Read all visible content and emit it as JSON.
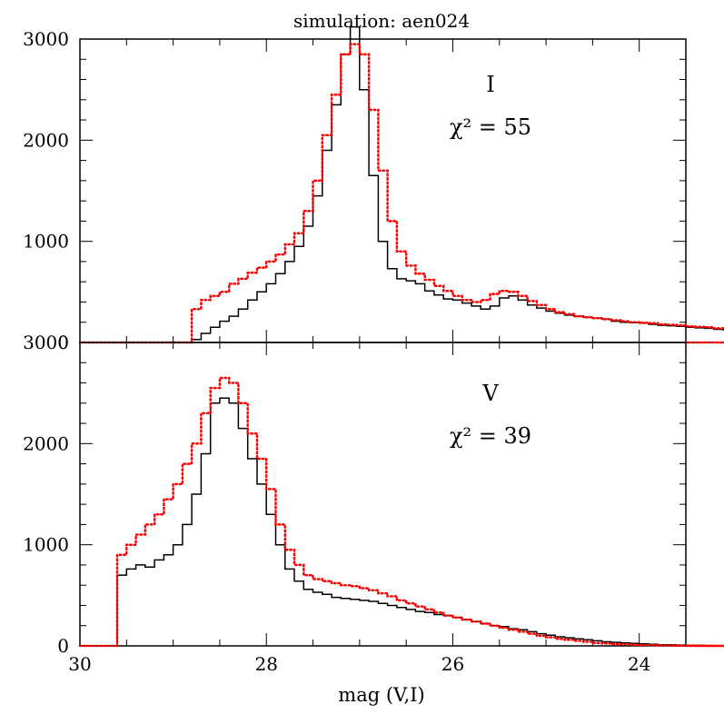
{
  "chart_data": {
    "type": "histogram",
    "title": "simulation: aen024",
    "xlabel": "mag (V,I)",
    "x_range": [
      30,
      23.5
    ],
    "x_ticks": [
      30,
      28,
      26,
      24
    ],
    "y_ticks": [
      0,
      1000,
      2000,
      3000
    ],
    "bin_width": 0.1,
    "panels": [
      {
        "id": "top",
        "band": "I",
        "chi2_label": "χ² = 55",
        "ylim": [
          0,
          3000
        ],
        "series": [
          {
            "style": "solid",
            "color": "#000000",
            "x_start": 28.8,
            "values": [
              30,
              90,
              150,
              210,
              260,
              330,
              420,
              500,
              580,
              680,
              800,
              950,
              1150,
              1450,
              1900,
              2350,
              2850,
              3120,
              2500,
              1650,
              1000,
              730,
              630,
              610,
              580,
              510,
              470,
              430,
              420,
              390,
              360,
              330,
              360,
              440,
              460,
              420,
              370,
              340,
              310,
              290,
              270,
              260,
              250,
              240,
              230,
              210,
              200,
              195,
              190,
              180,
              170,
              165,
              160,
              150,
              145,
              140,
              130,
              125,
              120,
              115,
              110,
              105,
              100,
              95,
              90,
              82,
              72,
              62,
              52,
              42,
              32,
              22,
              16,
              10,
              6,
              3,
              2,
              1,
              0,
              0
            ]
          },
          {
            "style": "dotted",
            "color": "#ff0000",
            "x_start": 28.8,
            "values": [
              330,
              420,
              460,
              500,
              580,
              630,
              690,
              740,
              800,
              870,
              970,
              1080,
              1300,
              1600,
              2050,
              2450,
              2850,
              2950,
              2850,
              2300,
              1700,
              1200,
              900,
              760,
              680,
              620,
              560,
              510,
              460,
              420,
              400,
              420,
              480,
              510,
              500,
              460,
              410,
              370,
              330,
              300,
              280,
              260,
              250,
              240,
              230,
              220,
              210,
              200,
              195,
              190,
              180,
              175,
              170,
              160,
              155,
              150,
              140,
              135,
              130,
              125,
              120,
              115,
              110,
              100,
              95,
              88,
              78,
              68,
              58,
              48,
              38,
              28,
              20,
              14,
              8,
              5,
              3,
              2,
              1,
              0
            ]
          }
        ]
      },
      {
        "id": "bottom",
        "band": "V",
        "chi2_label": "χ² = 39",
        "ylim": [
          0,
          3000
        ],
        "series": [
          {
            "style": "solid",
            "color": "#000000",
            "x_start": 29.6,
            "values": [
              700,
              760,
              800,
              780,
              850,
              900,
              1000,
              1200,
              1500,
              1900,
              2400,
              2450,
              2400,
              2150,
              1850,
              1600,
              1300,
              1000,
              760,
              640,
              560,
              530,
              510,
              480,
              470,
              460,
              450,
              440,
              420,
              400,
              380,
              360,
              340,
              330,
              310,
              300,
              280,
              260,
              240,
              220,
              200,
              190,
              170,
              160,
              140,
              120,
              105,
              90,
              80,
              70,
              60,
              50,
              40,
              35,
              30,
              25,
              20,
              15,
              12,
              10,
              8,
              6,
              5,
              4,
              3,
              2,
              1,
              0,
              0,
              0,
              0,
              0
            ]
          },
          {
            "style": "dotted",
            "color": "#ff0000",
            "x_start": 29.6,
            "values": [
              900,
              1000,
              1100,
              1200,
              1300,
              1450,
              1600,
              1800,
              2000,
              2300,
              2550,
              2650,
              2600,
              2400,
              2100,
              1850,
              1550,
              1200,
              950,
              800,
              700,
              660,
              640,
              620,
              600,
              590,
              570,
              550,
              520,
              490,
              450,
              420,
              390,
              360,
              330,
              300,
              280,
              260,
              240,
              220,
              200,
              180,
              160,
              140,
              120,
              100,
              85,
              70,
              60,
              50,
              40,
              30,
              24,
              18,
              14,
              10,
              8,
              6,
              5,
              4,
              3,
              2,
              1,
              0,
              0,
              0,
              0,
              0,
              0,
              0,
              0,
              0
            ]
          }
        ]
      }
    ]
  }
}
